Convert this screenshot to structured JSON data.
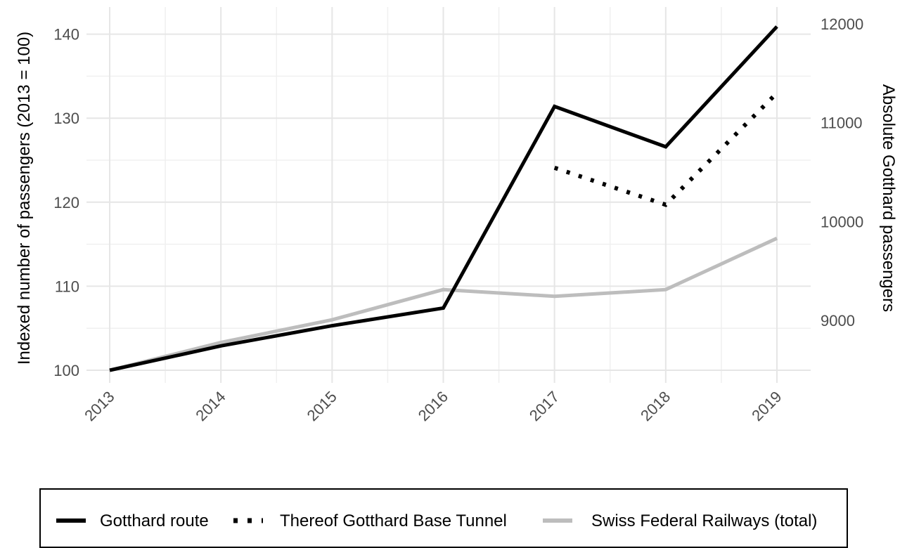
{
  "chart_data": {
    "type": "line",
    "title": "",
    "xlabel": "",
    "ylabel": "Indexed number of passengers (2013 = 100)",
    "ylabel_right": "Absolute Gotthard passengers",
    "categories": [
      "2013",
      "2014",
      "2015",
      "2016",
      "2017",
      "2018",
      "2019"
    ],
    "ylim": [
      98,
      141.8
    ],
    "yticks": [
      100,
      110,
      120,
      130,
      140
    ],
    "y_right_ticks": [
      9000,
      10000,
      11000,
      12000
    ],
    "y_right_ratio": 0.01177,
    "grid": true,
    "legend_position": "bottom",
    "series": [
      {
        "name": "Gotthard route",
        "color": "#000000",
        "style": "solid",
        "values": [
          100,
          102.9,
          105.3,
          107.4,
          131.4,
          126.6,
          140.9
        ]
      },
      {
        "name": "Thereof Gotthard Base Tunnel",
        "color": "#000000",
        "style": "dotted",
        "values": [
          null,
          null,
          null,
          null,
          124.1,
          119.7,
          133.0
        ]
      },
      {
        "name": "Swiss Federal Railways (total)",
        "color": "#bdbdbd",
        "style": "solid",
        "values": [
          100,
          103.3,
          106.0,
          109.6,
          108.8,
          109.6,
          115.7
        ]
      }
    ]
  }
}
